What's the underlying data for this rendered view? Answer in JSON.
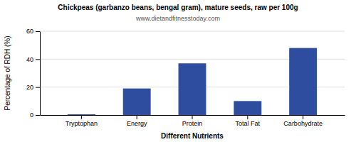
{
  "chart_data": {
    "type": "bar",
    "title": "Chickpeas (garbanzo beans, bengal gram), mature seeds, raw per 100g",
    "subtitle": "www.dietandfitnesstoday.com",
    "xlabel": "Different Nutrients",
    "ylabel": "Percentage of RDH (%)",
    "categories": [
      "Tryptophan",
      "Energy",
      "Protein",
      "Total Fat",
      "Carbohydrate"
    ],
    "values": [
      0.5,
      19,
      37,
      10,
      48
    ],
    "color": "#2e4d9e",
    "ylim": [
      0,
      60
    ],
    "yticks": [
      0,
      20,
      40,
      60
    ],
    "grid": true
  }
}
